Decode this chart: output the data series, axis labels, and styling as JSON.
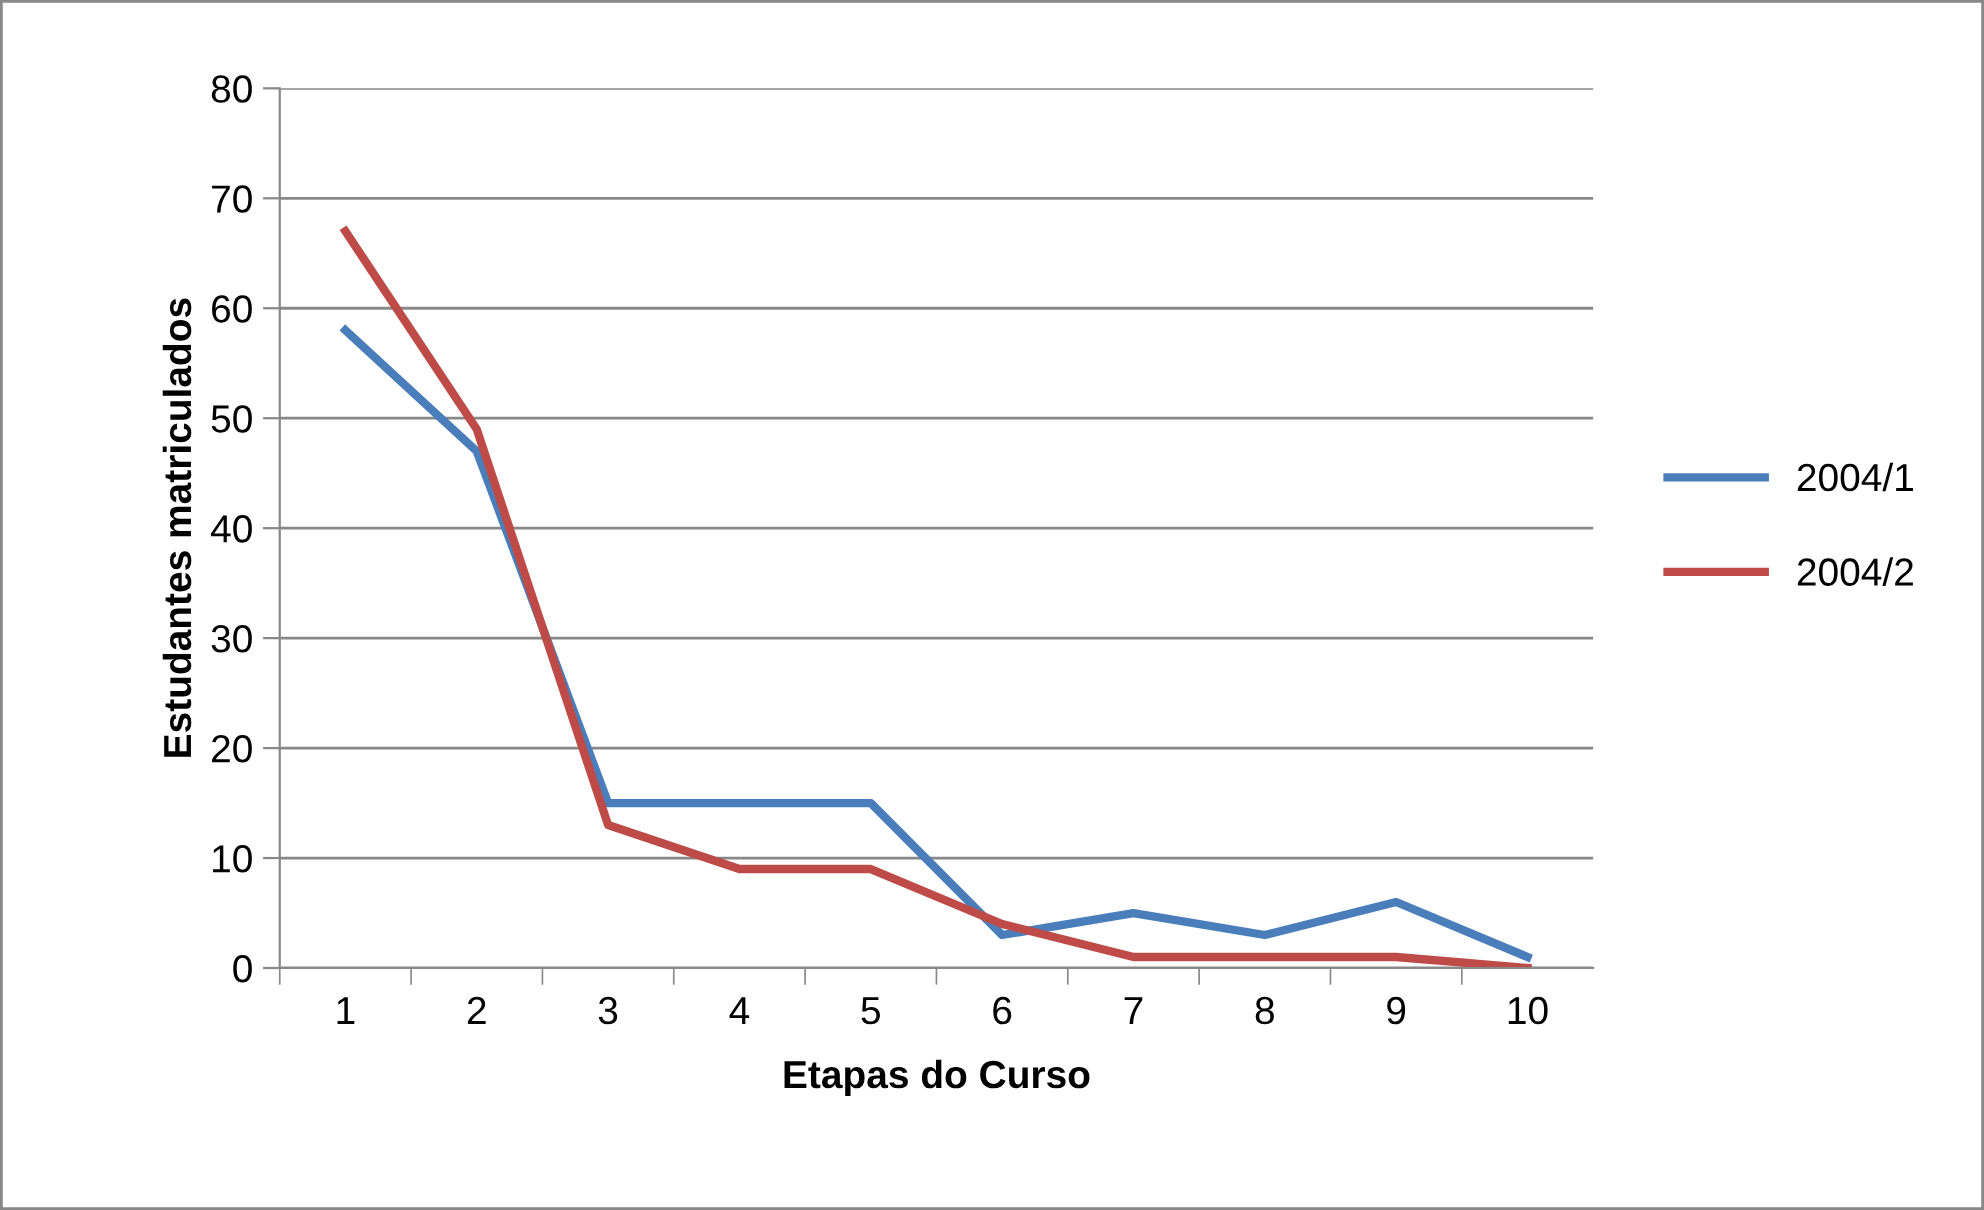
{
  "chart_data": {
    "type": "line",
    "xlabel": "Etapas do Curso",
    "ylabel": "Estudantes matriculados",
    "categories": [
      "1",
      "2",
      "3",
      "4",
      "5",
      "6",
      "7",
      "8",
      "9",
      "10"
    ],
    "series": [
      {
        "name": "2004/1",
        "color": "#4a7ebb",
        "values": [
          58,
          47,
          15,
          15,
          15,
          3,
          5,
          3,
          6,
          1
        ]
      },
      {
        "name": "2004/2",
        "color": "#be4b48",
        "values": [
          67,
          49,
          13,
          9,
          9,
          4,
          1,
          1,
          1,
          0
        ]
      }
    ],
    "ylim": [
      0,
      80
    ],
    "yticks": [
      0,
      10,
      20,
      30,
      40,
      50,
      60,
      70,
      80
    ],
    "grid": "y",
    "legend": "right",
    "marker": "none",
    "line_style": "solid"
  }
}
